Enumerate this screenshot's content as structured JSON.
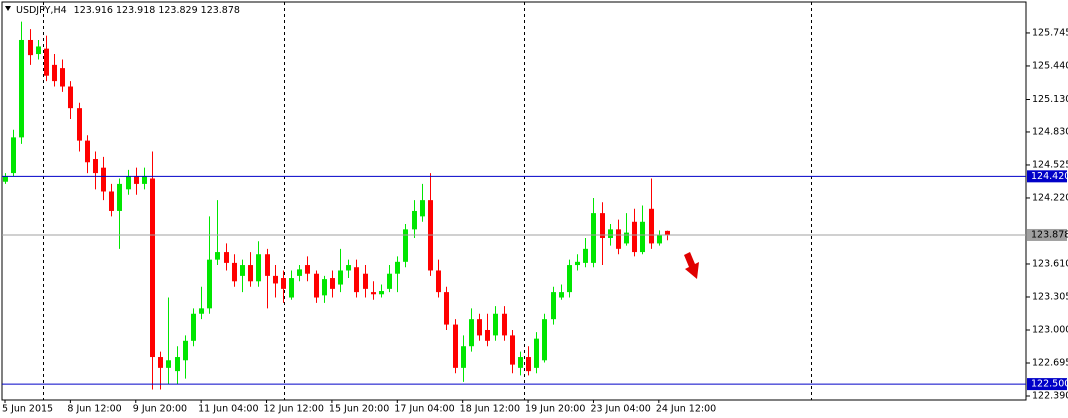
{
  "chart_data": {
    "type": "candlestick",
    "title": "USDJPY,H4",
    "categories": [
      "5 Jun 2015",
      null,
      null,
      null,
      null,
      null,
      null,
      null,
      "8 Jun 12:00",
      null,
      null,
      null,
      null,
      null,
      null,
      null,
      "9 Jun 20:00",
      null,
      null,
      null,
      null,
      null,
      null,
      null,
      "11 Jun 04:00",
      null,
      null,
      null,
      null,
      null,
      null,
      null,
      "12 Jun 12:00",
      null,
      null,
      null,
      null,
      null,
      null,
      null,
      "15 Jun 20:00",
      null,
      null,
      null,
      null,
      null,
      null,
      null,
      "17 Jun 04:00",
      null,
      null,
      null,
      null,
      null,
      null,
      null,
      "18 Jun 12:00",
      null,
      null,
      null,
      null,
      null,
      null,
      null,
      "19 Jun 20:00",
      null,
      null,
      null,
      null,
      null,
      null,
      null,
      "23 Jun 04:00",
      null,
      null,
      null,
      null,
      null,
      null,
      null,
      "24 Jun 12:00",
      null
    ],
    "open": [
      124.37,
      124.45,
      124.78,
      125.68,
      125.55,
      125.6,
      125.45,
      125.42,
      125.25,
      125.05,
      124.75,
      124.58,
      124.5,
      124.28,
      124.1,
      124.3,
      124.42,
      124.35,
      124.4,
      122.75,
      122.65,
      122.62,
      122.72,
      122.9,
      123.15,
      123.2,
      123.65,
      123.72,
      123.62,
      123.5,
      123.6,
      123.45,
      123.7,
      123.5,
      123.48,
      123.3,
      123.5,
      123.6,
      123.52,
      123.32,
      123.48,
      123.42,
      123.55,
      123.58,
      123.52,
      123.35,
      123.33,
      123.38,
      123.52,
      123.63,
      123.93,
      124.05,
      124.2,
      123.55,
      123.35,
      123.05,
      122.65,
      122.85,
      123.1,
      123.0,
      122.95,
      123.15,
      122.95,
      122.65,
      122.75,
      122.65,
      122.72,
      123.1,
      123.3,
      123.35,
      123.6,
      123.62,
      123.62,
      124.08,
      123.85,
      123.93,
      123.8,
      124.0,
      123.72,
      124.12,
      123.8,
      123.916
    ],
    "high": [
      124.45,
      124.85,
      125.85,
      125.78,
      125.68,
      125.72,
      125.55,
      125.5,
      125.3,
      125.1,
      124.8,
      124.65,
      124.6,
      124.35,
      124.4,
      124.48,
      124.5,
      124.5,
      124.65,
      122.8,
      123.3,
      122.85,
      122.95,
      123.2,
      123.4,
      124.05,
      124.2,
      123.8,
      123.7,
      123.65,
      123.72,
      123.82,
      123.75,
      123.6,
      123.55,
      123.55,
      123.6,
      123.68,
      123.55,
      123.5,
      123.55,
      123.75,
      123.65,
      123.65,
      123.6,
      123.45,
      123.42,
      123.6,
      123.68,
      123.98,
      124.2,
      124.35,
      124.45,
      123.65,
      123.4,
      123.1,
      122.95,
      123.2,
      123.15,
      123.15,
      123.22,
      123.22,
      123.0,
      122.8,
      122.85,
      122.98,
      123.15,
      123.4,
      123.42,
      123.65,
      123.7,
      123.85,
      124.22,
      124.18,
      123.98,
      124.02,
      124.08,
      124.12,
      124.15,
      124.4,
      123.92,
      123.918
    ],
    "low": [
      124.35,
      124.42,
      124.72,
      125.45,
      125.5,
      125.3,
      125.25,
      125.2,
      124.95,
      124.65,
      124.45,
      124.3,
      124.2,
      124.05,
      123.75,
      124.25,
      124.25,
      124.3,
      122.45,
      122.45,
      122.5,
      122.5,
      122.55,
      122.85,
      123.1,
      123.15,
      123.6,
      123.55,
      123.4,
      123.35,
      123.4,
      123.4,
      123.2,
      123.3,
      123.25,
      123.28,
      123.45,
      123.45,
      123.25,
      123.25,
      123.3,
      123.35,
      123.48,
      123.3,
      123.3,
      123.28,
      123.3,
      123.35,
      123.35,
      123.58,
      123.85,
      124.0,
      123.5,
      123.3,
      123.0,
      122.6,
      122.52,
      122.8,
      122.9,
      122.85,
      122.9,
      122.9,
      122.6,
      122.58,
      122.58,
      122.6,
      122.7,
      123.05,
      123.28,
      123.3,
      123.55,
      123.58,
      123.58,
      123.6,
      123.78,
      123.7,
      123.78,
      123.68,
      123.7,
      123.75,
      123.78,
      123.829
    ],
    "close": [
      124.42,
      124.78,
      125.68,
      125.54,
      125.62,
      125.35,
      125.3,
      125.25,
      125.05,
      124.75,
      124.55,
      124.45,
      124.28,
      124.1,
      124.35,
      124.42,
      124.35,
      124.42,
      122.75,
      122.65,
      122.72,
      122.75,
      122.9,
      123.15,
      123.2,
      123.65,
      123.72,
      123.62,
      123.45,
      123.6,
      123.45,
      123.7,
      123.5,
      123.43,
      123.38,
      123.48,
      123.56,
      123.52,
      123.3,
      123.47,
      123.38,
      123.55,
      123.6,
      123.35,
      123.38,
      123.33,
      123.36,
      123.52,
      123.63,
      123.93,
      124.1,
      124.2,
      123.55,
      123.35,
      123.05,
      122.65,
      122.85,
      123.1,
      122.95,
      122.9,
      123.15,
      122.95,
      122.68,
      122.75,
      122.62,
      122.92,
      123.1,
      123.35,
      123.35,
      123.6,
      123.63,
      123.75,
      124.08,
      123.85,
      123.93,
      123.75,
      123.9,
      123.72,
      124.0,
      123.8,
      123.88,
      123.878
    ],
    "up_color": "#00e600",
    "down_color": "#ff0000",
    "ylim": [
      122.353,
      126.031
    ],
    "yticks": [
      125.745,
      {
        "value": 125.44,
        "label": "125.440"
      },
      {
        "value": 125.13,
        "label": "125.130"
      },
      {
        "value": 124.83,
        "label": "124.830"
      },
      124.525,
      {
        "value": 124.22,
        "label": "124.220"
      },
      {
        "value": 123.61,
        "label": "123.610"
      },
      123.305,
      {
        "value": 123,
        "label": "123.000"
      },
      122.695,
      {
        "value": 122.39,
        "label": "122.390"
      }
    ],
    "hlines": [
      {
        "value": 124.42,
        "label": "124.420",
        "color": "#0000c8"
      },
      {
        "value": 122.5,
        "label": "122.500",
        "color": "#0000c8"
      }
    ],
    "bid_line_color": "#a0a0a0"
  }
}
